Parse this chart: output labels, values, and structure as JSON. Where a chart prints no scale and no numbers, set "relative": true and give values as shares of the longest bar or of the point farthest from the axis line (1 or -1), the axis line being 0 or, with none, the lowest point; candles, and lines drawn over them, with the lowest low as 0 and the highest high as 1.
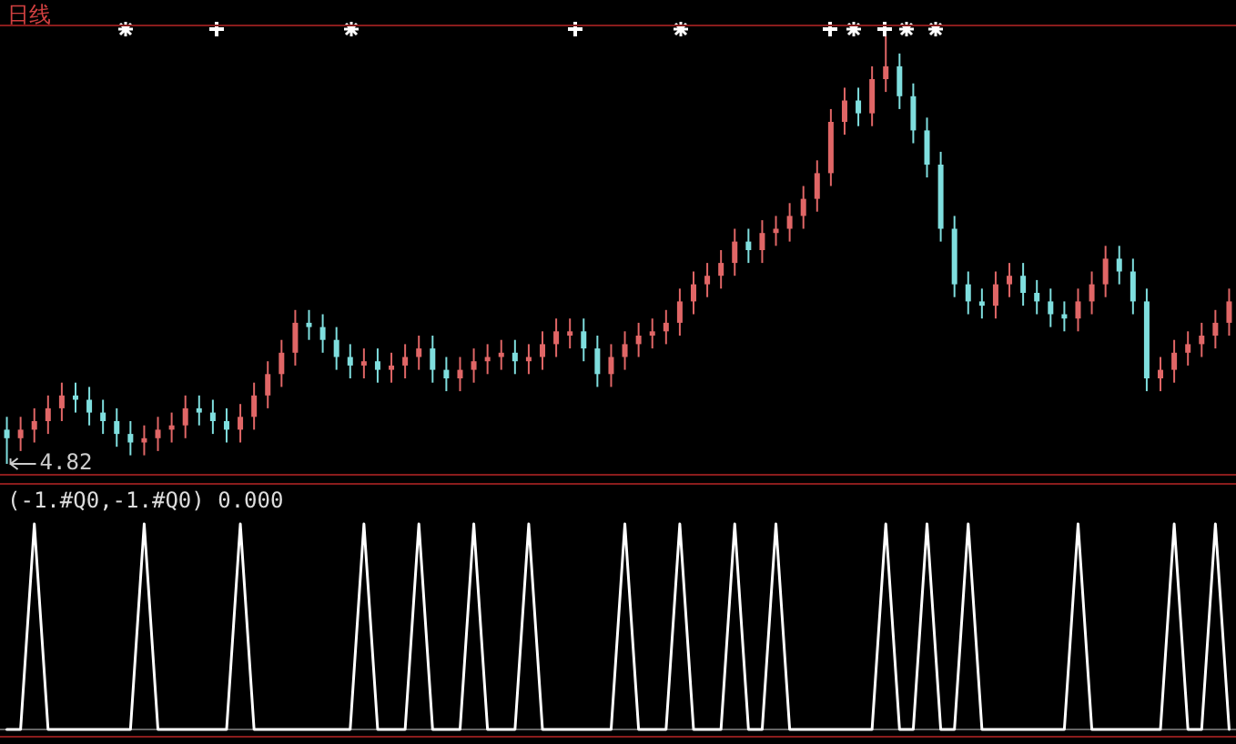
{
  "chart_data": [
    {
      "type": "candlestick",
      "title": "日线",
      "relative": true,
      "annotations": [
        "4.82"
      ],
      "categories": [
        null,
        null,
        null,
        null,
        null,
        null,
        null,
        null,
        null,
        null,
        null,
        null,
        null,
        null,
        null,
        null,
        null,
        null,
        null,
        null,
        null,
        null,
        null,
        null,
        null,
        null,
        null,
        null,
        null,
        null,
        null,
        null,
        null,
        null,
        null,
        null,
        null,
        null,
        null,
        null,
        null,
        null,
        null,
        null,
        null,
        null,
        null,
        null,
        null,
        null,
        null,
        null,
        null,
        null,
        null,
        null,
        null,
        null,
        null,
        null,
        null,
        null,
        null,
        null,
        null,
        null,
        null,
        null,
        null,
        null,
        null,
        null,
        null,
        null,
        null,
        null,
        null,
        null,
        null,
        null,
        null,
        null,
        null,
        null,
        null,
        null,
        null,
        null,
        null,
        null
      ],
      "ohlc": [
        [
          0.08,
          0.11,
          0,
          0.06
        ],
        [
          0.06,
          0.11,
          0.03,
          0.08
        ],
        [
          0.08,
          0.13,
          0.05,
          0.1
        ],
        [
          0.1,
          0.16,
          0.07,
          0.13
        ],
        [
          0.13,
          0.19,
          0.1,
          0.16
        ],
        [
          0.16,
          0.19,
          0.12,
          0.15
        ],
        [
          0.15,
          0.18,
          0.09,
          0.12
        ],
        [
          0.12,
          0.15,
          0.07,
          0.1
        ],
        [
          0.1,
          0.13,
          0.04,
          0.07
        ],
        [
          0.07,
          0.1,
          0.02,
          0.05
        ],
        [
          0.05,
          0.09,
          0.02,
          0.06
        ],
        [
          0.06,
          0.11,
          0.03,
          0.08
        ],
        [
          0.08,
          0.12,
          0.05,
          0.09
        ],
        [
          0.09,
          0.16,
          0.06,
          0.13
        ],
        [
          0.13,
          0.16,
          0.09,
          0.12
        ],
        [
          0.12,
          0.15,
          0.07,
          0.1
        ],
        [
          0.1,
          0.13,
          0.05,
          0.08
        ],
        [
          0.08,
          0.14,
          0.05,
          0.11
        ],
        [
          0.11,
          0.19,
          0.08,
          0.16
        ],
        [
          0.16,
          0.24,
          0.13,
          0.21
        ],
        [
          0.21,
          0.29,
          0.18,
          0.26
        ],
        [
          0.26,
          0.36,
          0.23,
          0.33
        ],
        [
          0.33,
          0.36,
          0.29,
          0.32
        ],
        [
          0.32,
          0.35,
          0.26,
          0.29
        ],
        [
          0.29,
          0.32,
          0.22,
          0.25
        ],
        [
          0.25,
          0.28,
          0.2,
          0.23
        ],
        [
          0.23,
          0.27,
          0.2,
          0.24
        ],
        [
          0.24,
          0.27,
          0.19,
          0.22
        ],
        [
          0.22,
          0.26,
          0.19,
          0.23
        ],
        [
          0.23,
          0.28,
          0.2,
          0.25
        ],
        [
          0.25,
          0.3,
          0.22,
          0.27
        ],
        [
          0.27,
          0.3,
          0.19,
          0.22
        ],
        [
          0.22,
          0.25,
          0.17,
          0.2
        ],
        [
          0.2,
          0.25,
          0.17,
          0.22
        ],
        [
          0.22,
          0.27,
          0.19,
          0.24
        ],
        [
          0.24,
          0.28,
          0.21,
          0.25
        ],
        [
          0.25,
          0.29,
          0.22,
          0.26
        ],
        [
          0.26,
          0.29,
          0.21,
          0.24
        ],
        [
          0.24,
          0.28,
          0.21,
          0.25
        ],
        [
          0.25,
          0.31,
          0.22,
          0.28
        ],
        [
          0.28,
          0.34,
          0.25,
          0.31
        ],
        [
          0.3,
          0.34,
          0.27,
          0.31
        ],
        [
          0.31,
          0.34,
          0.24,
          0.27
        ],
        [
          0.27,
          0.3,
          0.18,
          0.21
        ],
        [
          0.21,
          0.28,
          0.18,
          0.25
        ],
        [
          0.25,
          0.31,
          0.22,
          0.28
        ],
        [
          0.28,
          0.33,
          0.25,
          0.3
        ],
        [
          0.3,
          0.34,
          0.27,
          0.31
        ],
        [
          0.31,
          0.36,
          0.28,
          0.33
        ],
        [
          0.33,
          0.41,
          0.3,
          0.38
        ],
        [
          0.38,
          0.45,
          0.35,
          0.42
        ],
        [
          0.42,
          0.47,
          0.39,
          0.44
        ],
        [
          0.44,
          0.5,
          0.41,
          0.47
        ],
        [
          0.47,
          0.55,
          0.44,
          0.52
        ],
        [
          0.52,
          0.55,
          0.47,
          0.5
        ],
        [
          0.5,
          0.57,
          0.47,
          0.54
        ],
        [
          0.54,
          0.58,
          0.51,
          0.55
        ],
        [
          0.55,
          0.61,
          0.52,
          0.58
        ],
        [
          0.58,
          0.65,
          0.55,
          0.62
        ],
        [
          0.62,
          0.71,
          0.59,
          0.68
        ],
        [
          0.68,
          0.83,
          0.65,
          0.8
        ],
        [
          0.8,
          0.88,
          0.77,
          0.85
        ],
        [
          0.85,
          0.88,
          0.79,
          0.82
        ],
        [
          0.82,
          0.93,
          0.79,
          0.9
        ],
        [
          0.9,
          1.0,
          0.87,
          0.93
        ],
        [
          0.93,
          0.96,
          0.83,
          0.86
        ],
        [
          0.86,
          0.89,
          0.75,
          0.78
        ],
        [
          0.78,
          0.81,
          0.67,
          0.7
        ],
        [
          0.7,
          0.73,
          0.52,
          0.55
        ],
        [
          0.55,
          0.58,
          0.39,
          0.42
        ],
        [
          0.42,
          0.45,
          0.35,
          0.38
        ],
        [
          0.38,
          0.41,
          0.34,
          0.37
        ],
        [
          0.37,
          0.45,
          0.34,
          0.42
        ],
        [
          0.42,
          0.47,
          0.39,
          0.44
        ],
        [
          0.44,
          0.47,
          0.37,
          0.4
        ],
        [
          0.4,
          0.43,
          0.35,
          0.38
        ],
        [
          0.38,
          0.41,
          0.32,
          0.35
        ],
        [
          0.35,
          0.38,
          0.31,
          0.34
        ],
        [
          0.34,
          0.41,
          0.31,
          0.38
        ],
        [
          0.38,
          0.45,
          0.35,
          0.42
        ],
        [
          0.42,
          0.51,
          0.39,
          0.48
        ],
        [
          0.48,
          0.51,
          0.42,
          0.45
        ],
        [
          0.45,
          0.48,
          0.35,
          0.38
        ],
        [
          0.38,
          0.41,
          0.17,
          0.2
        ],
        [
          0.2,
          0.25,
          0.17,
          0.22
        ],
        [
          0.22,
          0.29,
          0.19,
          0.26
        ],
        [
          0.26,
          0.31,
          0.23,
          0.28
        ],
        [
          0.28,
          0.33,
          0.25,
          0.3
        ],
        [
          0.3,
          0.36,
          0.27,
          0.33
        ],
        [
          0.33,
          0.41,
          0.3,
          0.38
        ]
      ]
    },
    {
      "type": "line",
      "relative": true,
      "marker": "none",
      "annotations": [
        "(-1.#Q0,-1.#Q0) 0.000"
      ],
      "categories": [
        null,
        null,
        null,
        null,
        null,
        null,
        null,
        null,
        null,
        null,
        null,
        null,
        null,
        null,
        null,
        null,
        null,
        null,
        null,
        null,
        null,
        null,
        null,
        null,
        null,
        null,
        null,
        null,
        null,
        null,
        null,
        null,
        null,
        null,
        null,
        null,
        null,
        null,
        null,
        null,
        null,
        null,
        null,
        null,
        null,
        null,
        null,
        null,
        null,
        null,
        null,
        null,
        null,
        null,
        null,
        null,
        null,
        null,
        null,
        null,
        null,
        null,
        null,
        null,
        null,
        null,
        null,
        null,
        null,
        null,
        null,
        null,
        null,
        null,
        null,
        null,
        null,
        null,
        null,
        null,
        null,
        null,
        null,
        null,
        null,
        null,
        null,
        null,
        null,
        null
      ],
      "series": [
        {
          "color": "#ffffff",
          "values": [
            0,
            0,
            1,
            0,
            0,
            0,
            0,
            0,
            0,
            0,
            1,
            0,
            0,
            0,
            0,
            0,
            0,
            1,
            0,
            0,
            0,
            0,
            0,
            0,
            0,
            0,
            1,
            0,
            0,
            0,
            1,
            0,
            0,
            0,
            1,
            0,
            0,
            0,
            1,
            0,
            0,
            0,
            0,
            0,
            0,
            1,
            0,
            0,
            0,
            1,
            0,
            0,
            0,
            1,
            0,
            0,
            1,
            0,
            0,
            0,
            0,
            0,
            0,
            0,
            1,
            0,
            0,
            1,
            0,
            0,
            1,
            0,
            0,
            0,
            0,
            0,
            0,
            0,
            1,
            0,
            0,
            0,
            0,
            0,
            0,
            1,
            0,
            0,
            1,
            0
          ]
        }
      ]
    }
  ]
}
